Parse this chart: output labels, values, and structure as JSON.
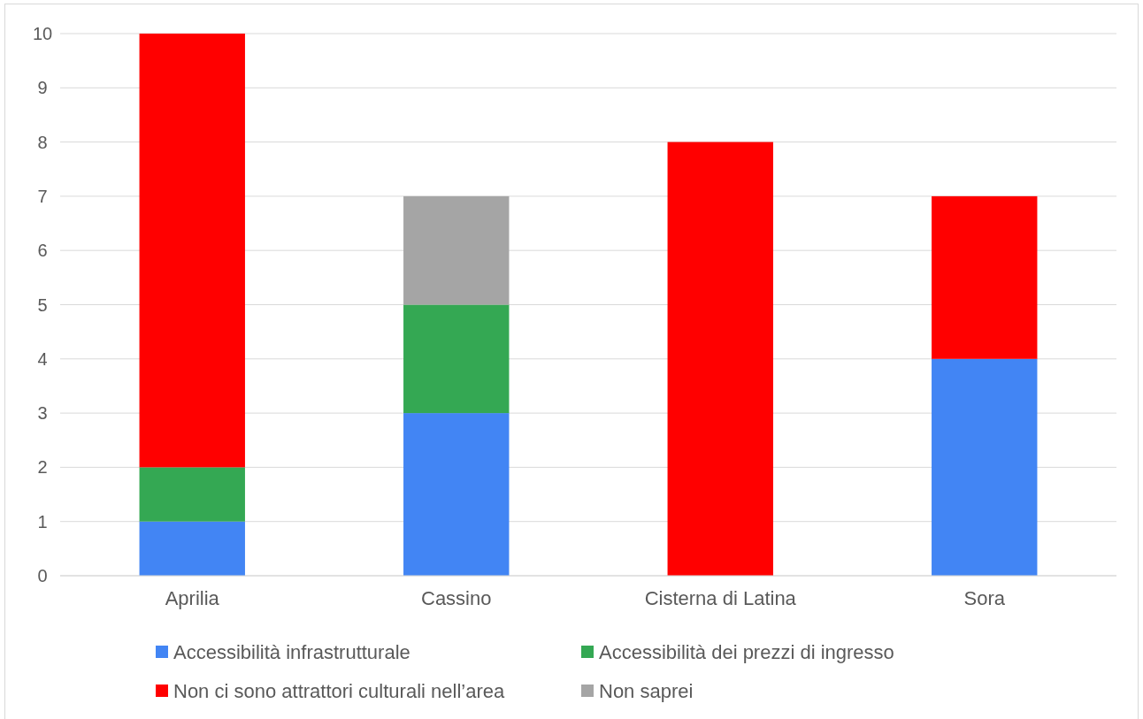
{
  "chart_data": {
    "type": "bar",
    "stacked": true,
    "categories": [
      "Aprilia",
      "Cassino",
      "Cisterna di Latina",
      "Sora"
    ],
    "series": [
      {
        "name": "Accessibilità infrastrutturale",
        "color": "#4285f4",
        "values": [
          1,
          3,
          0,
          4
        ]
      },
      {
        "name": "Accessibilità dei prezzi di ingresso",
        "color": "#34a853",
        "values": [
          1,
          2,
          0,
          0
        ]
      },
      {
        "name": "Non ci sono attrattori culturali nell’area",
        "color": "#ff0000",
        "values": [
          8,
          0,
          8,
          3
        ]
      },
      {
        "name": "Non saprei",
        "color": "#a5a5a5",
        "values": [
          0,
          2,
          0,
          0
        ]
      }
    ],
    "ylim": [
      0,
      10
    ],
    "yticks": [
      0,
      1,
      2,
      3,
      4,
      5,
      6,
      7,
      8,
      9,
      10
    ],
    "grid": "y",
    "legend": "bottom"
  }
}
